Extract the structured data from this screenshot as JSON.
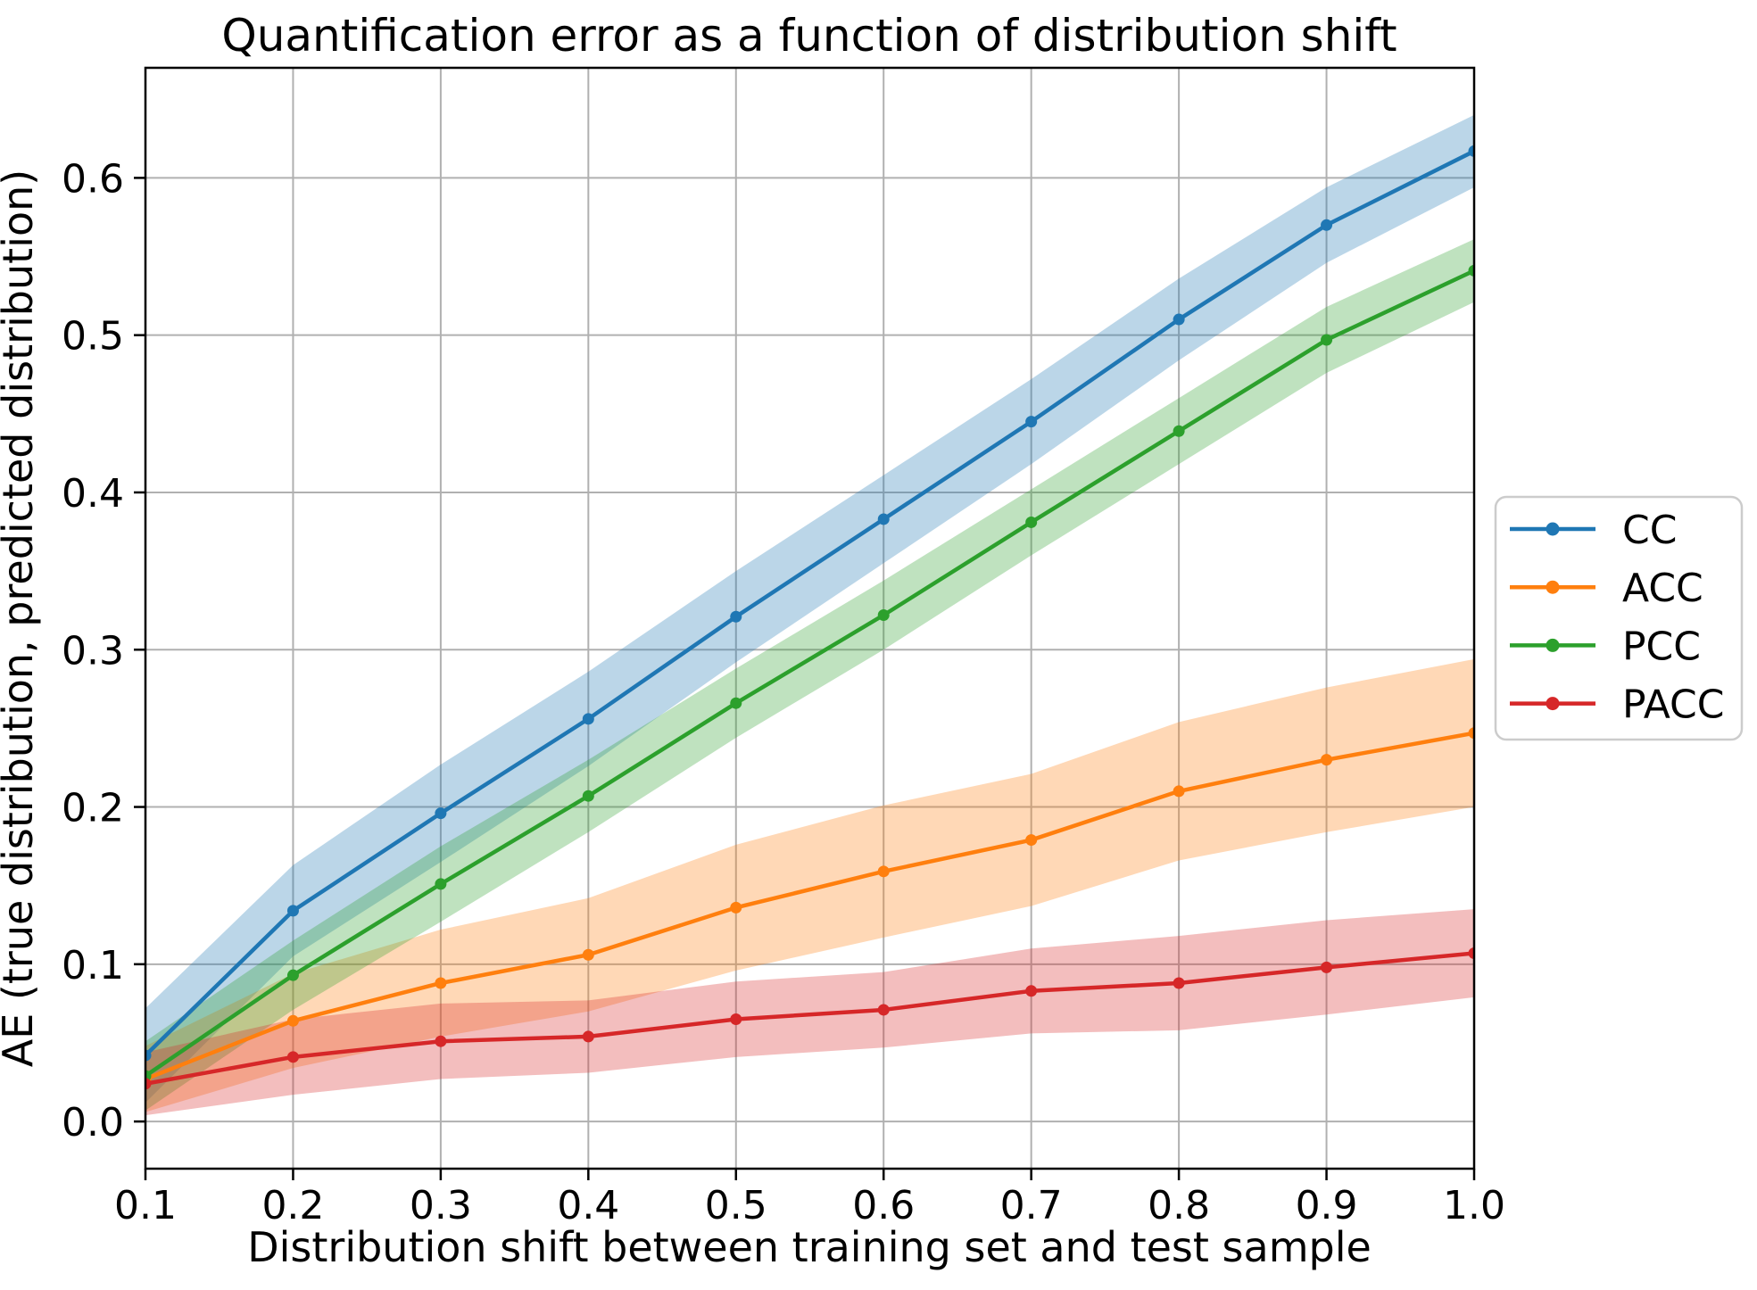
{
  "chart_data": {
    "type": "line",
    "title": "Quantification error as a function of distribution shift",
    "xlabel": "Distribution shift between training set and test sample",
    "ylabel": "AE (true distribution, predicted distribution)",
    "x": [
      0.1,
      0.2,
      0.3,
      0.4,
      0.5,
      0.6,
      0.7,
      0.8,
      0.9,
      1.0
    ],
    "x_tick_labels": [
      "0.1",
      "0.2",
      "0.3",
      "0.4",
      "0.5",
      "0.6",
      "0.7",
      "0.8",
      "0.9",
      "1.0"
    ],
    "y_ticks": [
      0.0,
      0.1,
      0.2,
      0.3,
      0.4,
      0.5,
      0.6
    ],
    "y_tick_labels": [
      "0.0",
      "0.1",
      "0.2",
      "0.3",
      "0.4",
      "0.5",
      "0.6"
    ],
    "xlim": [
      0.1,
      1.0
    ],
    "ylim": [
      -0.03,
      0.67
    ],
    "grid": true,
    "grid_color": "#b0b0b0",
    "spine_color": "#000000",
    "legend_position": "center-right-outside",
    "legend_border_color": "#cccccc",
    "band_opacity": 0.3,
    "series": [
      {
        "name": "CC",
        "color": "#1f77b4",
        "values": [
          0.042,
          0.134,
          0.196,
          0.256,
          0.321,
          0.383,
          0.445,
          0.51,
          0.57,
          0.617
        ],
        "band_lower": [
          0.012,
          0.105,
          0.165,
          0.226,
          0.292,
          0.355,
          0.418,
          0.484,
          0.546,
          0.594
        ],
        "band_upper": [
          0.072,
          0.163,
          0.227,
          0.286,
          0.35,
          0.411,
          0.472,
          0.536,
          0.594,
          0.64
        ]
      },
      {
        "name": "ACC",
        "color": "#ff7f0e",
        "values": [
          0.027,
          0.064,
          0.088,
          0.106,
          0.136,
          0.159,
          0.179,
          0.21,
          0.23,
          0.247
        ],
        "band_lower": [
          0.006,
          0.034,
          0.054,
          0.07,
          0.096,
          0.117,
          0.137,
          0.166,
          0.184,
          0.2
        ],
        "band_upper": [
          0.048,
          0.094,
          0.122,
          0.142,
          0.176,
          0.201,
          0.221,
          0.254,
          0.276,
          0.294
        ]
      },
      {
        "name": "PCC",
        "color": "#2ca02c",
        "values": [
          0.029,
          0.093,
          0.151,
          0.207,
          0.266,
          0.322,
          0.381,
          0.439,
          0.497,
          0.541
        ],
        "band_lower": [
          0.007,
          0.071,
          0.127,
          0.184,
          0.244,
          0.3,
          0.36,
          0.418,
          0.476,
          0.521
        ],
        "band_upper": [
          0.051,
          0.115,
          0.175,
          0.23,
          0.288,
          0.344,
          0.402,
          0.46,
          0.518,
          0.561
        ]
      },
      {
        "name": "PACC",
        "color": "#d62728",
        "values": [
          0.024,
          0.041,
          0.051,
          0.054,
          0.065,
          0.071,
          0.083,
          0.088,
          0.098,
          0.107
        ],
        "band_lower": [
          0.004,
          0.017,
          0.027,
          0.031,
          0.041,
          0.047,
          0.056,
          0.058,
          0.068,
          0.079
        ],
        "band_upper": [
          0.044,
          0.065,
          0.075,
          0.077,
          0.089,
          0.095,
          0.11,
          0.118,
          0.128,
          0.135
        ]
      }
    ]
  }
}
